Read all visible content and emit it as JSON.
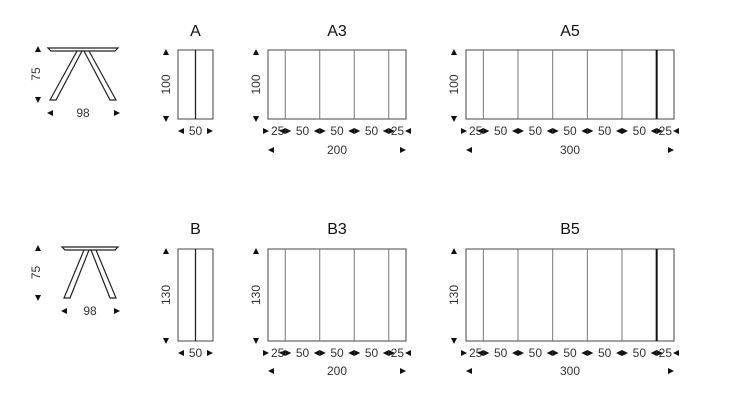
{
  "rows": [
    {
      "side_view": {
        "height_label": "75",
        "width_label": "98"
      },
      "tables": [
        {
          "title": "A",
          "depth_label": "100",
          "segment_labels": [
            "50"
          ],
          "total_label": ""
        },
        {
          "title": "A3",
          "depth_label": "100",
          "segment_labels": [
            "25",
            "50",
            "50",
            "50",
            "25"
          ],
          "total_label": "200"
        },
        {
          "title": "A5",
          "depth_label": "100",
          "segment_labels": [
            "25",
            "50",
            "50",
            "50",
            "50",
            "50",
            "25"
          ],
          "total_label": "300"
        }
      ]
    },
    {
      "side_view": {
        "height_label": "75",
        "width_label": "98"
      },
      "tables": [
        {
          "title": "B",
          "depth_label": "130",
          "segment_labels": [
            "50"
          ],
          "total_label": ""
        },
        {
          "title": "B3",
          "depth_label": "130",
          "segment_labels": [
            "25",
            "50",
            "50",
            "50",
            "25"
          ],
          "total_label": "200"
        },
        {
          "title": "B5",
          "depth_label": "130",
          "segment_labels": [
            "25",
            "50",
            "50",
            "50",
            "50",
            "50",
            "25"
          ],
          "total_label": "300"
        }
      ]
    }
  ]
}
